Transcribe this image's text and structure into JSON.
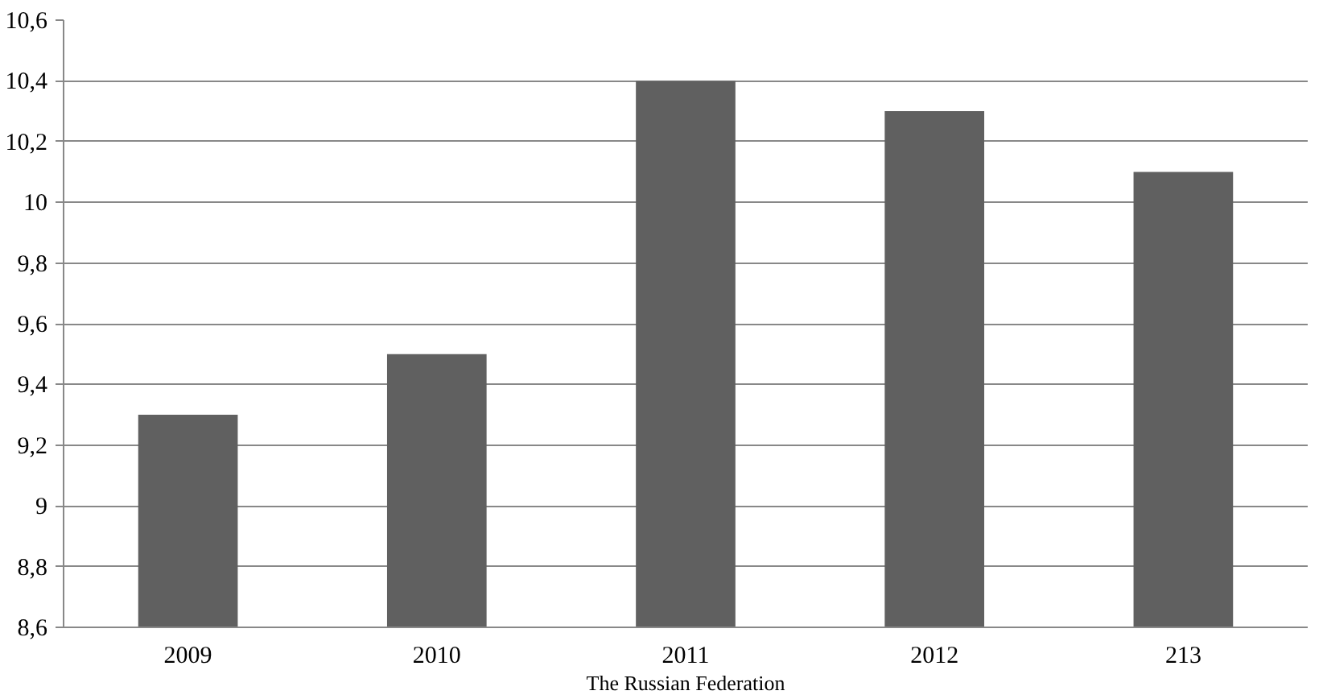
{
  "chart_data": {
    "type": "bar",
    "xlabel": "The Russian Federation",
    "categories": [
      "2009",
      "2010",
      "2011",
      "2012",
      "213"
    ],
    "values": [
      9.3,
      9.5,
      10.4,
      10.3,
      10.1
    ],
    "color": "#606060",
    "ylim": [
      8.6,
      10.6
    ],
    "yticks": [
      {
        "value": 8.6,
        "label": "8,6"
      },
      {
        "value": 8.8,
        "label": "8,8"
      },
      {
        "value": 9,
        "label": "9"
      },
      {
        "value": 9.2,
        "label": "9,2"
      },
      {
        "value": 9.4,
        "label": "9,4"
      },
      {
        "value": 9.6,
        "label": "9,6"
      },
      {
        "value": 9.8,
        "label": "9,8"
      },
      {
        "value": 10,
        "label": "10"
      },
      {
        "value": 10.2,
        "label": "10,2"
      },
      {
        "value": 10.4,
        "label": "10,4"
      },
      {
        "value": 10.6,
        "label": "10,6"
      }
    ],
    "grid": "y"
  }
}
